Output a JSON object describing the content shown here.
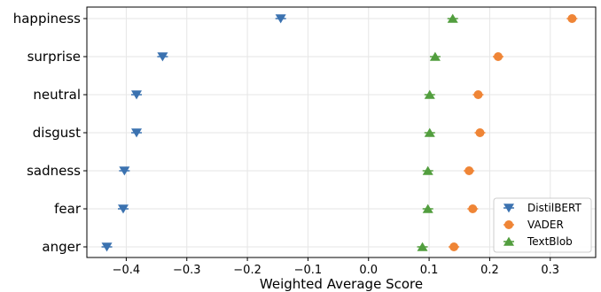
{
  "chart_data": {
    "type": "scatter",
    "title": "",
    "xlabel": "Weighted Average Score",
    "ylabel": "",
    "xlim": [
      -0.465,
      0.375
    ],
    "x_ticks": [
      -0.4,
      -0.3,
      -0.2,
      -0.1,
      0.0,
      0.1,
      0.2,
      0.3
    ],
    "x_tick_labels": [
      "−0.4",
      "−0.3",
      "−0.2",
      "−0.1",
      "0.0",
      "0.1",
      "0.2",
      "0.3"
    ],
    "categories": [
      "happiness",
      "surprise",
      "neutral",
      "disgust",
      "sadness",
      "fear",
      "anger"
    ],
    "grid": true,
    "legend_position": "bottom-right",
    "series": [
      {
        "name": "DistilBERT",
        "marker": "triangle-down",
        "color": "#3b72b0",
        "values": [
          -0.145,
          -0.34,
          -0.383,
          -0.383,
          -0.403,
          -0.405,
          -0.432
        ]
      },
      {
        "name": "VADER",
        "marker": "circle",
        "color": "#ef8536",
        "values": [
          0.336,
          0.214,
          0.181,
          0.184,
          0.166,
          0.172,
          0.141
        ]
      },
      {
        "name": "TextBlob",
        "marker": "triangle-up",
        "color": "#529e3e",
        "values": [
          0.139,
          0.11,
          0.101,
          0.101,
          0.098,
          0.098,
          0.089
        ]
      }
    ]
  }
}
